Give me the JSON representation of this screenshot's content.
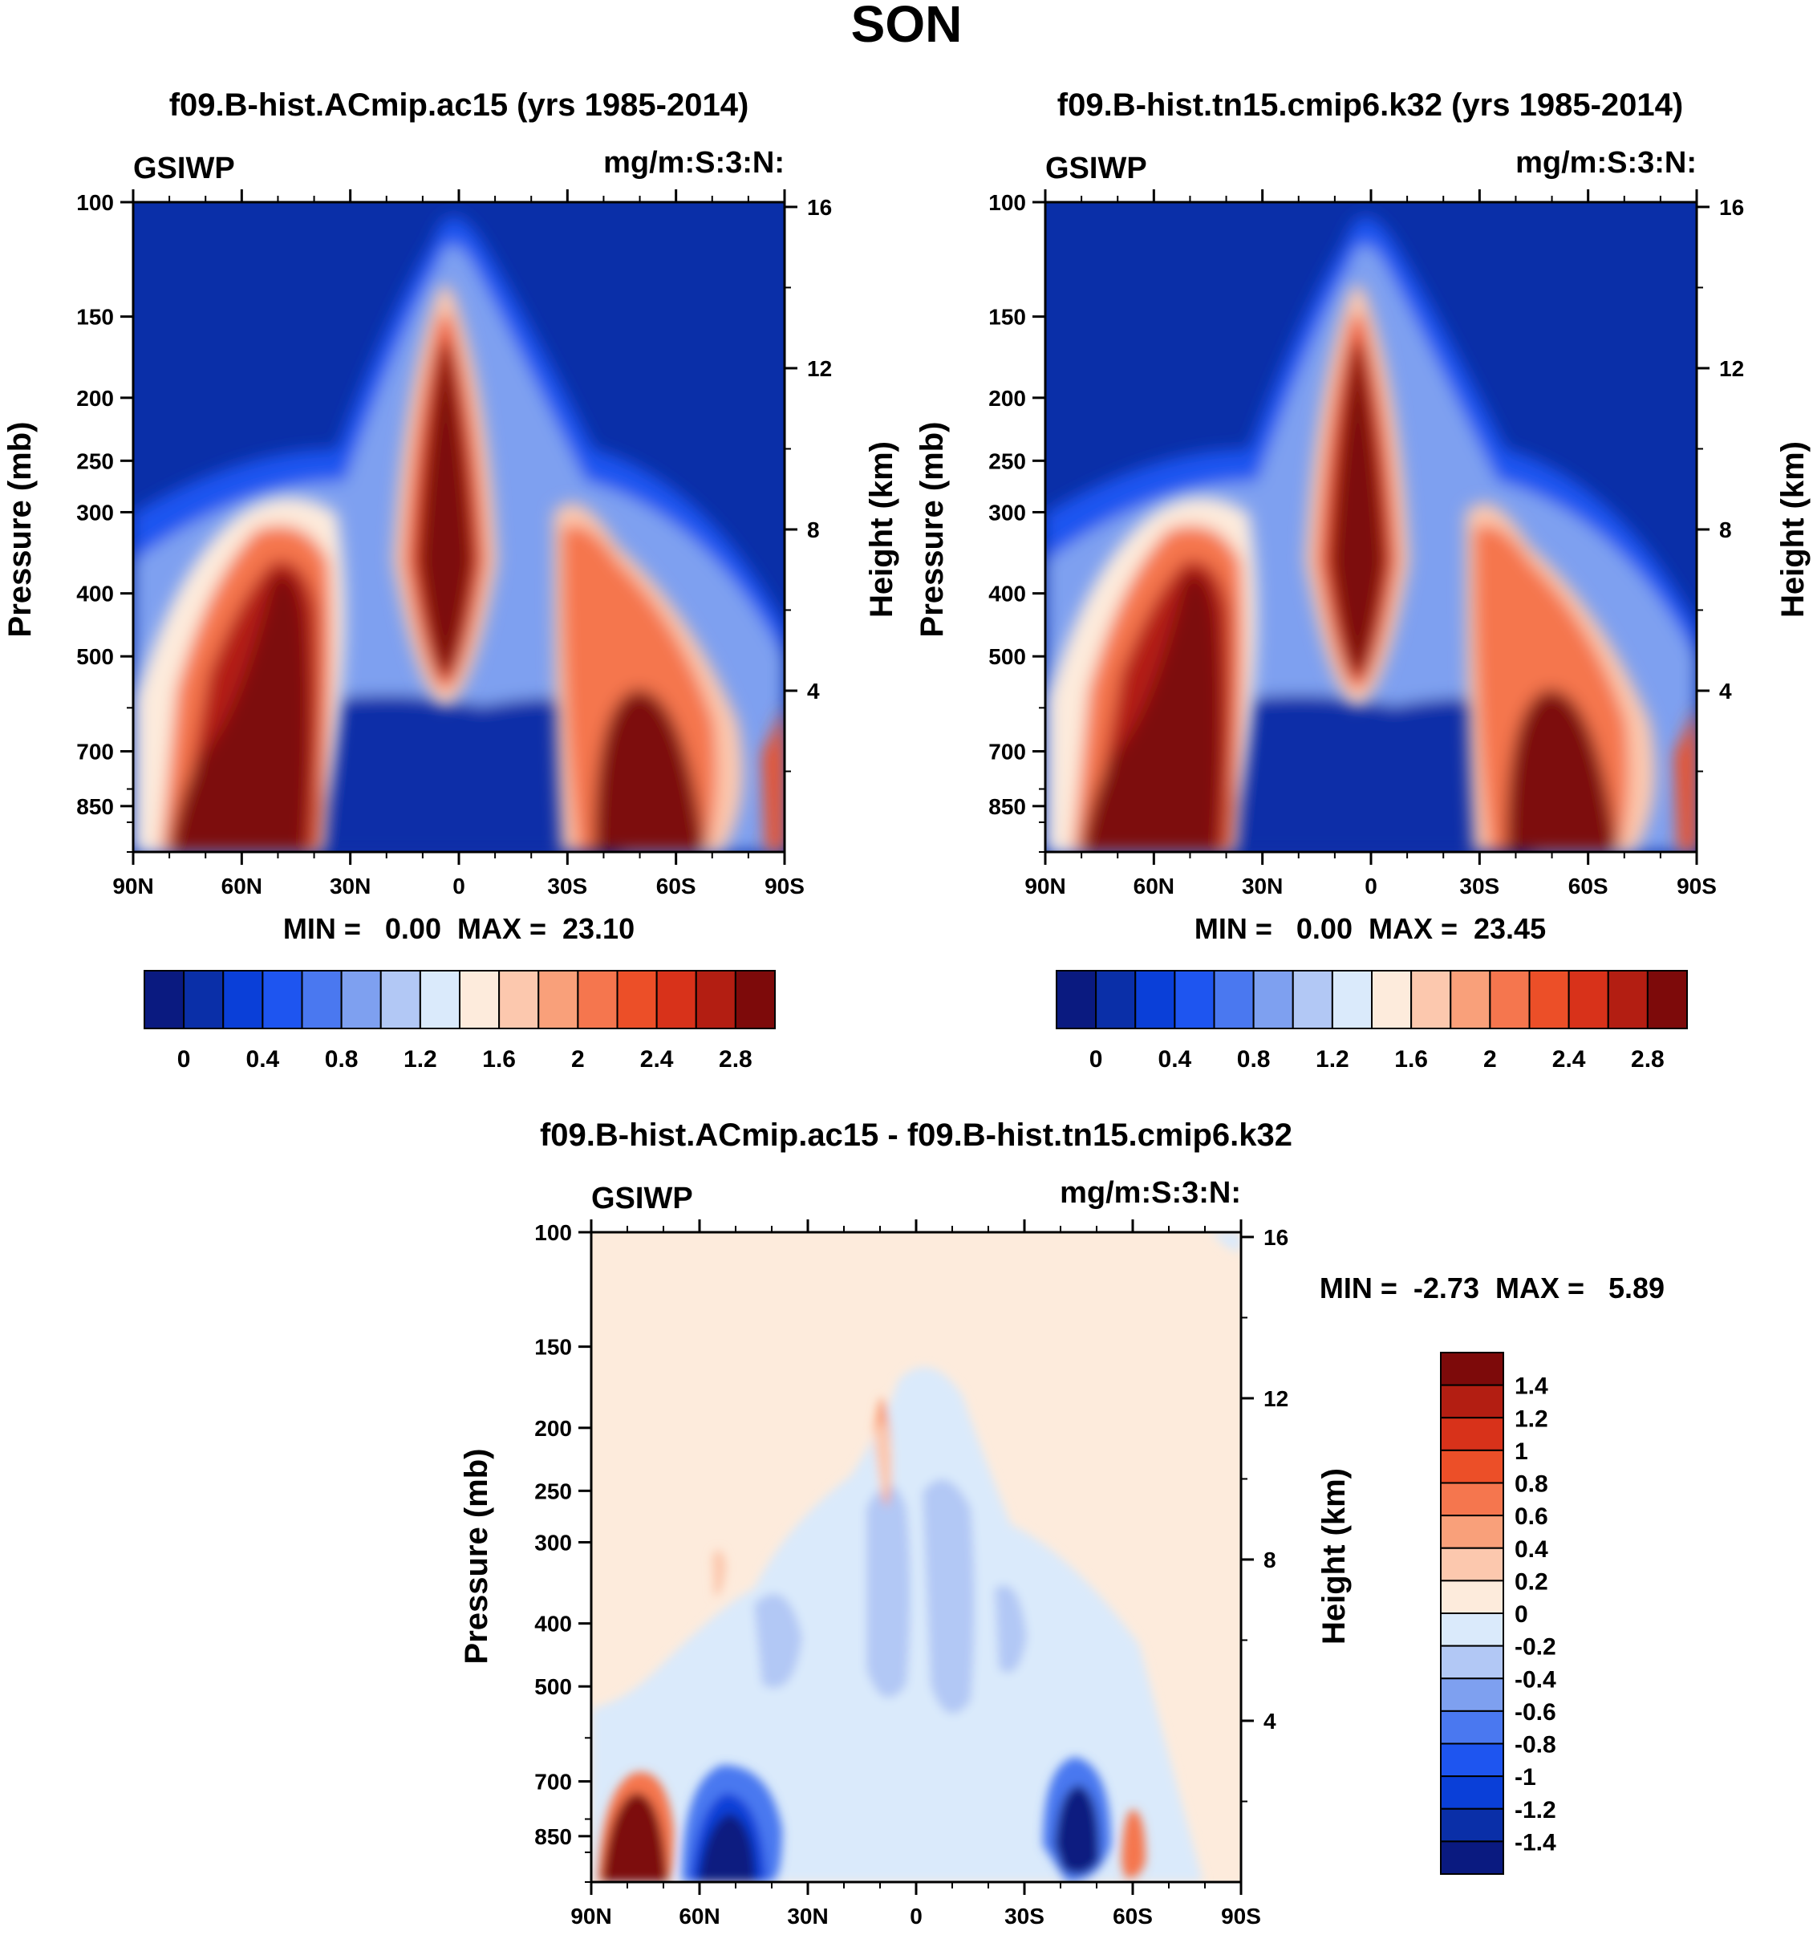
{
  "figure_title": "SON",
  "colors": {
    "seq_scale": [
      "#0a1a80",
      "#0a2fa8",
      "#0a3fd8",
      "#1e55f0",
      "#4a78f0",
      "#7ea0f0",
      "#b2c8f5",
      "#daeafb",
      "#fdebdc",
      "#fcc8ae",
      "#f9a07a",
      "#f5764e",
      "#ec4f28",
      "#d8321a",
      "#b31e12",
      "#7d0a0a"
    ],
    "diff_scale": [
      "#0a1a80",
      "#0a2fa8",
      "#0a3fd8",
      "#1e55f0",
      "#4a78f0",
      "#7ea0f0",
      "#b2c8f5",
      "#daeafb",
      "#fdebdc",
      "#fcc8ae",
      "#f9a07a",
      "#f5764e",
      "#ec4f28",
      "#d8321a",
      "#b31e12",
      "#7d0a0a"
    ]
  },
  "chart_data": [
    {
      "type": "heatmap",
      "title": "f09.B-hist.ACmip.ac15 (yrs 1985-2014)",
      "variable": "GSIWP",
      "units": "mg/m:S:3:N:",
      "ylabel": "Pressure (mb)",
      "y2label": "Height (km)",
      "xticks": [
        "90N",
        "60N",
        "30N",
        "0",
        "30S",
        "60S",
        "90S"
      ],
      "yticks": [
        100,
        150,
        200,
        250,
        300,
        400,
        500,
        700,
        850
      ],
      "ylim": [
        100,
        1000
      ],
      "y2ticks": [
        16,
        12,
        8,
        4
      ],
      "stats": "MIN =   0.00  MAX =  23.10",
      "colorbar_labels": [
        "0",
        "0.4",
        "0.8",
        "1.2",
        "1.6",
        "2",
        "2.4",
        "2.8"
      ],
      "features": [
        {
          "lat": -10,
          "p": 300,
          "value": 23.1
        },
        {
          "lat": 60,
          "p": 600,
          "value": 5
        },
        {
          "lat": -50,
          "p": 800,
          "value": 5
        }
      ]
    },
    {
      "type": "heatmap",
      "title": "f09.B-hist.tn15.cmip6.k32 (yrs 1985-2014)",
      "variable": "GSIWP",
      "units": "mg/m:S:3:N:",
      "ylabel": "Pressure (mb)",
      "y2label": "Height (km)",
      "xticks": [
        "90N",
        "60N",
        "30N",
        "0",
        "30S",
        "60S",
        "90S"
      ],
      "yticks": [
        100,
        150,
        200,
        250,
        300,
        400,
        500,
        700,
        850
      ],
      "ylim": [
        100,
        1000
      ],
      "y2ticks": [
        16,
        12,
        8,
        4
      ],
      "stats": "MIN =   0.00  MAX =  23.45",
      "colorbar_labels": [
        "0",
        "0.4",
        "0.8",
        "1.2",
        "1.6",
        "2",
        "2.4",
        "2.8"
      ],
      "features": [
        {
          "lat": -10,
          "p": 300,
          "value": 23.45
        },
        {
          "lat": 60,
          "p": 600,
          "value": 5
        },
        {
          "lat": -50,
          "p": 800,
          "value": 5
        }
      ]
    },
    {
      "type": "heatmap",
      "title": "f09.B-hist.ACmip.ac15 - f09.B-hist.tn15.cmip6.k32",
      "variable": "GSIWP",
      "units": "mg/m:S:3:N:",
      "ylabel": "Pressure (mb)",
      "y2label": "Height (km)",
      "xticks": [
        "90N",
        "60N",
        "30N",
        "0",
        "30S",
        "60S",
        "90S"
      ],
      "yticks": [
        100,
        150,
        200,
        250,
        300,
        400,
        500,
        700,
        850
      ],
      "ylim": [
        100,
        1000
      ],
      "y2ticks": [
        16,
        12,
        8,
        4
      ],
      "stats": "MIN =  -2.73  MAX =   5.89",
      "colorbar_labels": [
        "1.4",
        "1.2",
        "1",
        "0.8",
        "0.6",
        "0.4",
        "0.2",
        "0",
        "-0.2",
        "-0.4",
        "-0.6",
        "-0.8",
        "-1",
        "-1.2",
        "-1.4"
      ]
    }
  ]
}
